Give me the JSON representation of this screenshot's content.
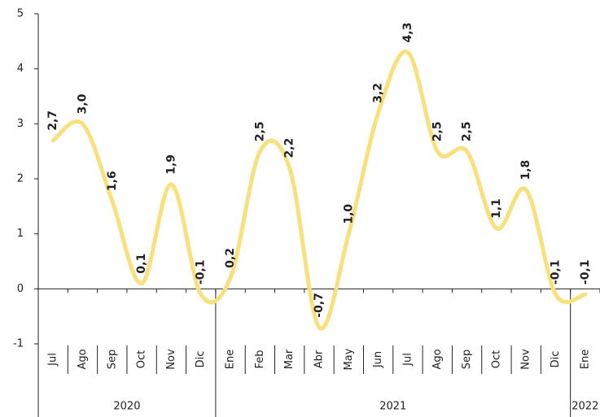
{
  "chart_data": {
    "type": "line",
    "groups": [
      {
        "label": "2020",
        "categories": [
          "Jul",
          "Ago",
          "Sep",
          "Oct",
          "Nov",
          "Dic"
        ]
      },
      {
        "label": "2021",
        "categories": [
          "Ene",
          "Feb",
          "Mar",
          "Abr",
          "May",
          "Jun",
          "Jul",
          "Ago",
          "Sep",
          "Oct",
          "Nov",
          "Dic"
        ]
      },
      {
        "label": "2022",
        "categories": [
          "Ene"
        ]
      }
    ],
    "series": [
      {
        "color": "#f8e07c",
        "values": [
          2.7,
          3.0,
          1.6,
          0.1,
          1.9,
          -0.1,
          0.2,
          2.5,
          2.2,
          -0.7,
          1.0,
          3.2,
          4.3,
          2.5,
          2.5,
          1.1,
          1.8,
          -0.1,
          -0.1
        ],
        "value_labels": [
          "2,7",
          "3,0",
          "1,6",
          "0,1",
          "1,9",
          "-0,1",
          "0,2",
          "2,5",
          "2,2",
          "-0,7",
          "1,0",
          "3,2",
          "4,3",
          "2,5",
          "2,5",
          "1,1",
          "1,8",
          "-0,1",
          "-0,1"
        ]
      }
    ],
    "ylim": [
      -1,
      5
    ],
    "yticks": [
      -1,
      0,
      1,
      2,
      3,
      4,
      5
    ]
  }
}
